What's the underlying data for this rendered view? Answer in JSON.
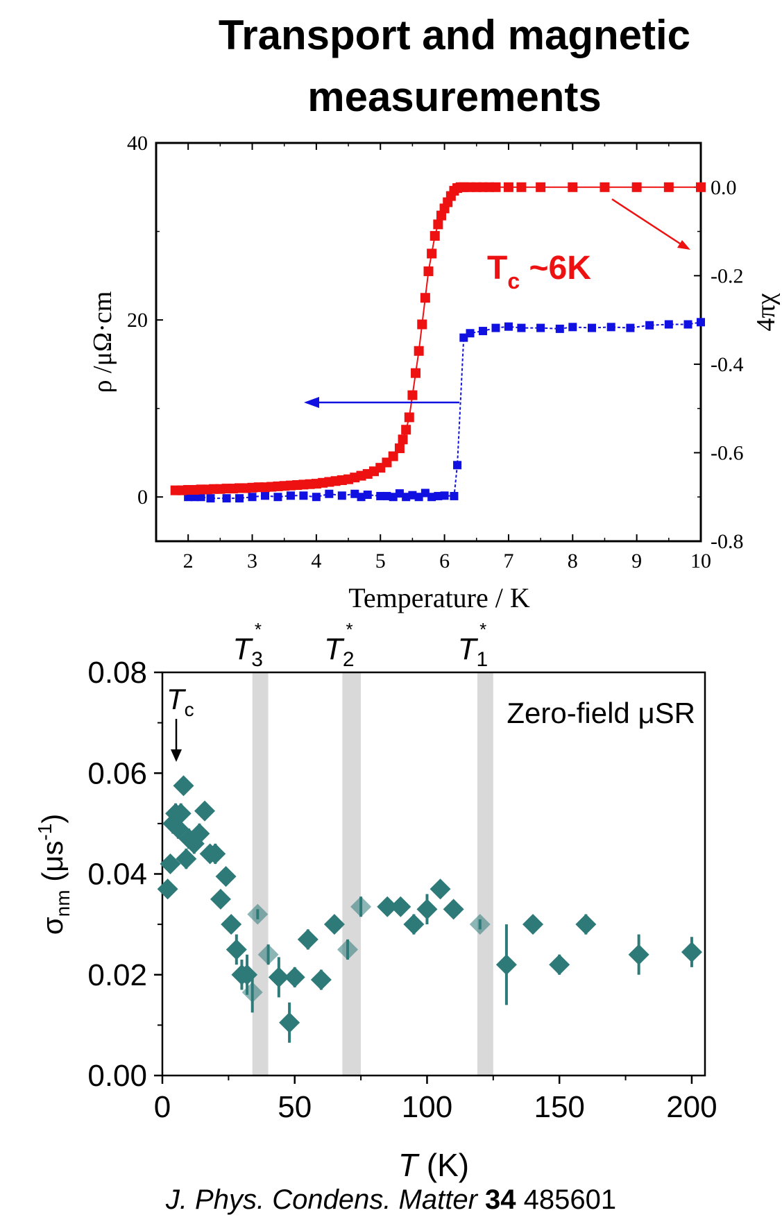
{
  "title": {
    "line1": "Transport and magnetic",
    "line2": "measurements"
  },
  "citation": {
    "journal": "J. Phys. Condens. Matter",
    "volume": "34",
    "article": "485601"
  },
  "colors": {
    "resistivity": "#ee1111",
    "susceptibility": "#1010e0",
    "musr": "#2e7a78",
    "band": "#d9d9d9"
  },
  "chart_data": [
    {
      "type": "line",
      "annotation": "Tc ~6K",
      "annotation_main": "T",
      "annotation_sub": "c",
      "annotation_rest": " ~6K",
      "xlabel": "Temperature / K",
      "ylabel_left": "ρ /μΩ·cm",
      "ylabel_right": "4πχ",
      "xlim": [
        1.5,
        10
      ],
      "ylim_left": [
        -5,
        40
      ],
      "ylim_right": [
        -0.8,
        0.1
      ],
      "x_ticks": [
        "2",
        "3",
        "4",
        "5",
        "6",
        "7",
        "8",
        "9",
        "10"
      ],
      "y_left_ticks": [
        "0",
        "20",
        "40"
      ],
      "y_right_ticks": [
        "0.0",
        "-0.2",
        "-0.4",
        "-0.6",
        "-0.8"
      ],
      "series": [
        {
          "axis": "right",
          "x": [
            2.0,
            2.1,
            2.2,
            2.35,
            2.6,
            2.8,
            3.0,
            3.2,
            3.4,
            3.6,
            3.8,
            4.0,
            4.2,
            4.4,
            4.6,
            4.7,
            4.8,
            5.0,
            5.1,
            5.2,
            5.3,
            5.4,
            5.5,
            5.6,
            5.7,
            5.8,
            5.9,
            6.0,
            6.15,
            6.2,
            6.3,
            6.4,
            6.6,
            6.8,
            7.0,
            7.2,
            7.5,
            7.8,
            8.0,
            8.3,
            8.6,
            8.9,
            9.2,
            9.5,
            9.8,
            10.0
          ],
          "y": [
            -0.7,
            -0.7,
            -0.7,
            -0.703,
            -0.703,
            -0.703,
            -0.7,
            -0.697,
            -0.7,
            -0.697,
            -0.697,
            -0.7,
            -0.693,
            -0.697,
            -0.693,
            -0.7,
            -0.695,
            -0.698,
            -0.698,
            -0.7,
            -0.692,
            -0.7,
            -0.696,
            -0.7,
            -0.691,
            -0.7,
            -0.698,
            -0.697,
            -0.698,
            -0.628,
            -0.34,
            -0.33,
            -0.325,
            -0.318,
            -0.315,
            -0.318,
            -0.318,
            -0.32,
            -0.316,
            -0.318,
            -0.316,
            -0.318,
            -0.312,
            -0.31,
            -0.31,
            -0.305
          ]
        },
        {
          "axis": "left",
          "x": [
            1.8,
            1.9,
            2.0,
            2.1,
            2.2,
            2.3,
            2.4,
            2.5,
            2.6,
            2.7,
            2.8,
            2.9,
            3.0,
            3.1,
            3.2,
            3.3,
            3.4,
            3.5,
            3.6,
            3.7,
            3.8,
            3.9,
            4.0,
            4.1,
            4.2,
            4.3,
            4.4,
            4.5,
            4.6,
            4.7,
            4.8,
            4.9,
            5.0,
            5.1,
            5.2,
            5.3,
            5.35,
            5.4,
            5.45,
            5.5,
            5.55,
            5.6,
            5.65,
            5.7,
            5.75,
            5.8,
            5.85,
            5.9,
            5.95,
            6.0,
            6.05,
            6.1,
            6.15,
            6.2,
            6.25,
            6.3,
            6.4,
            6.5,
            6.6,
            6.7,
            6.8,
            7.0,
            7.2,
            7.5,
            8.0,
            8.5,
            9.0,
            9.5,
            10.0
          ],
          "y": [
            0.75,
            0.75,
            0.8,
            0.8,
            0.85,
            0.85,
            0.9,
            0.9,
            0.95,
            0.95,
            1.0,
            1.0,
            1.05,
            1.1,
            1.1,
            1.15,
            1.2,
            1.25,
            1.3,
            1.35,
            1.4,
            1.45,
            1.5,
            1.6,
            1.7,
            1.8,
            1.9,
            2.0,
            2.2,
            2.4,
            2.6,
            2.9,
            3.3,
            3.9,
            4.6,
            5.5,
            6.5,
            7.6,
            9.0,
            11.5,
            14.0,
            16.5,
            19.5,
            22.5,
            25.5,
            27.5,
            29.5,
            30.8,
            31.8,
            32.6,
            33.3,
            34.0,
            34.6,
            34.9,
            35.0,
            35.0,
            35.0,
            35.0,
            35.0,
            35.0,
            35.0,
            35.0,
            35.0,
            35.0,
            35.0,
            35.0,
            35.0,
            35.0,
            35.0
          ]
        }
      ]
    },
    {
      "type": "scatter",
      "inset_label": "Zero-field μSR",
      "tc_label": "T",
      "tc_sub": "c",
      "xlabel_main": "T",
      "xlabel_unit": " (K)",
      "ylabel_main": "σ",
      "ylabel_sub": "nm",
      "ylabel_unit": " (μs",
      "ylabel_sup": "-1",
      "ylabel_close": ")",
      "xlim": [
        0,
        205
      ],
      "ylim": [
        0,
        0.08
      ],
      "x_ticks": [
        "0",
        "50",
        "100",
        "150",
        "200"
      ],
      "y_ticks": [
        "0.00",
        "0.02",
        "0.04",
        "0.06",
        "0.08"
      ],
      "bands": [
        {
          "label": "T",
          "sub": "3",
          "sup": "*",
          "x": [
            34,
            40
          ]
        },
        {
          "label": "T",
          "sub": "2",
          "sup": "*",
          "x": [
            68,
            75
          ]
        },
        {
          "label": "T",
          "sub": "1",
          "sup": "*",
          "x": [
            119,
            125
          ]
        }
      ],
      "x": [
        2,
        3,
        4,
        5,
        6,
        7,
        8,
        9,
        10,
        12,
        14,
        16,
        18,
        20,
        22,
        24,
        26,
        28,
        30,
        32,
        34,
        36,
        40,
        44,
        48,
        50,
        55,
        60,
        65,
        70,
        75,
        85,
        90,
        95,
        100,
        105,
        110,
        120,
        130,
        140,
        150,
        160,
        180,
        200
      ],
      "y": [
        0.037,
        0.042,
        0.05,
        0.052,
        0.049,
        0.052,
        0.0575,
        0.043,
        0.047,
        0.046,
        0.048,
        0.0525,
        0.044,
        0.044,
        0.035,
        0.0395,
        0.03,
        0.025,
        0.02,
        0.02,
        0.0165,
        0.032,
        0.024,
        0.0195,
        0.0105,
        0.0195,
        0.027,
        0.019,
        0.03,
        0.025,
        0.0335,
        0.0335,
        0.0335,
        0.03,
        0.033,
        0.037,
        0.033,
        0.03,
        0.022,
        0.03,
        0.022,
        0.03,
        0.024,
        0.0245
      ],
      "err": [
        0.001,
        0.001,
        0.002,
        0.002,
        0.002,
        0.002,
        0.001,
        0.002,
        0.002,
        0.002,
        0.002,
        0.001,
        0.001,
        0.002,
        0.001,
        0.001,
        0.001,
        0.003,
        0.003,
        0.004,
        0.004,
        0.001,
        0.002,
        0.004,
        0.004,
        0.002,
        0.002,
        0.002,
        0.001,
        0.002,
        0.002,
        0.001,
        0.001,
        0.002,
        0.003,
        0.001,
        0.001,
        0.001,
        0.008,
        0.001,
        0.002,
        0.002,
        0.004,
        0.003
      ]
    }
  ]
}
